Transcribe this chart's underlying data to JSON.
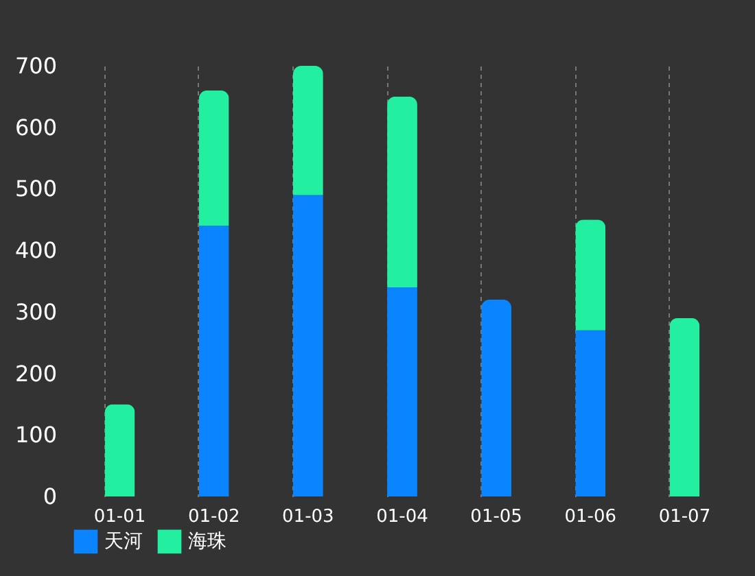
{
  "chart_data": {
    "type": "bar",
    "stacked": true,
    "categories": [
      "01-01",
      "01-02",
      "01-03",
      "01-04",
      "01-05",
      "01-06",
      "01-07"
    ],
    "series": [
      {
        "name": "天河",
        "color": "#0a84ff",
        "values": [
          0,
          440,
          490,
          340,
          320,
          270,
          0
        ]
      },
      {
        "name": "海珠",
        "color": "#22f0a0",
        "values": [
          150,
          220,
          210,
          310,
          0,
          180,
          290
        ]
      }
    ],
    "ylim": [
      0,
      700
    ],
    "yticks": [
      0,
      100,
      200,
      300,
      400,
      500,
      600,
      700
    ],
    "grid": "x",
    "legend": "bottom"
  }
}
